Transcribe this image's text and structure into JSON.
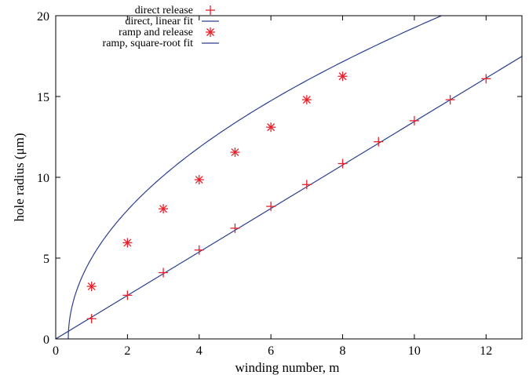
{
  "chart_data": {
    "type": "scatter",
    "title": "",
    "xlabel": "winding number, m",
    "ylabel": "hole radius (μm)",
    "xlim": [
      0,
      13
    ],
    "ylim": [
      0,
      20
    ],
    "xticks": [
      0,
      2,
      4,
      6,
      8,
      10,
      12
    ],
    "yticks": [
      0,
      5,
      10,
      15,
      20
    ],
    "x_tick_labels": [
      "0",
      "2",
      "4",
      "6",
      "8",
      "10",
      "12"
    ],
    "y_tick_labels": [
      "0",
      "5",
      "10",
      "15",
      "20"
    ],
    "grid": false,
    "legend_position": "top-left",
    "colors": {
      "markers": "#e8202a",
      "fit": "#2b3f8f",
      "axes": "#000000"
    },
    "series": [
      {
        "name": "direct release",
        "kind": "points",
        "marker": "plus",
        "x": [
          1,
          2,
          3,
          4,
          5,
          6,
          7,
          8,
          9,
          10,
          11,
          12
        ],
        "y": [
          1.25,
          2.7,
          4.1,
          5.5,
          6.85,
          8.2,
          9.55,
          10.85,
          12.2,
          13.5,
          14.8,
          16.1
        ]
      },
      {
        "name": "direct, linear fit",
        "kind": "line",
        "function": "linear",
        "slope": 1.345,
        "intercept": 0.0
      },
      {
        "name": "ramp and release",
        "kind": "points",
        "marker": "asterisk",
        "x": [
          1,
          2,
          3,
          4,
          5,
          6,
          7,
          8
        ],
        "y": [
          3.25,
          5.95,
          8.05,
          9.85,
          11.55,
          13.1,
          14.8,
          16.25
        ]
      },
      {
        "name": "ramp, square-root fit",
        "kind": "line",
        "function": "sqrt",
        "coefficient": 6.2,
        "x0": 0.35
      }
    ]
  }
}
